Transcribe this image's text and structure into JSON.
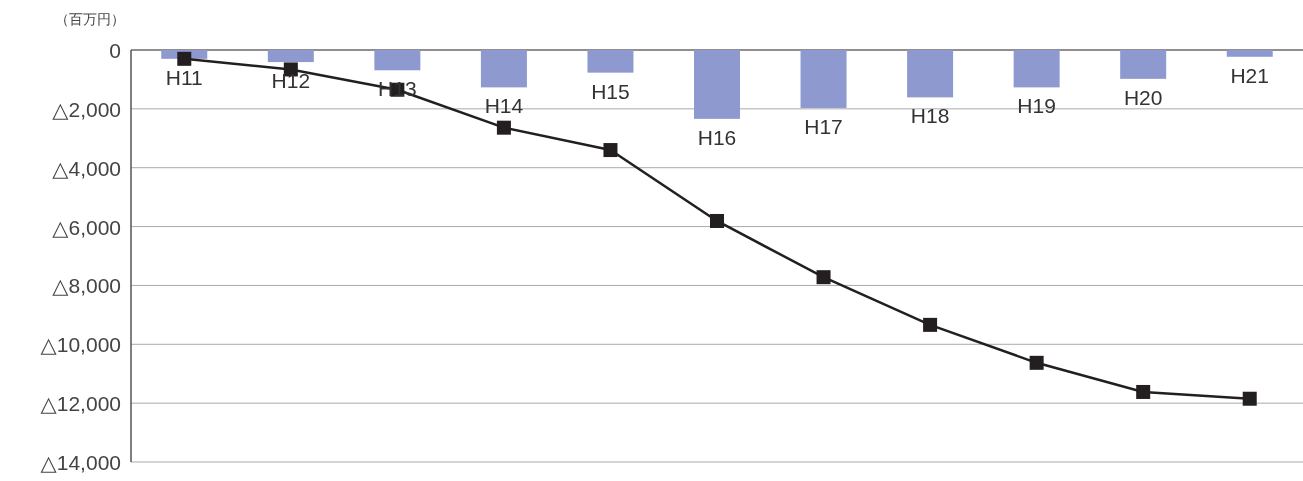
{
  "chart_data": {
    "type": "bar",
    "ylabel": "（百万円）",
    "categories": [
      "H11",
      "H12",
      "H13",
      "H14",
      "H15",
      "H16",
      "H17",
      "H18",
      "H19",
      "H20",
      "H21"
    ],
    "series": [
      {
        "color": "#8e99cf",
        "values": [
          -300,
          -410,
          -690,
          -1270,
          -770,
          -2340,
          -1970,
          -1610,
          -1270,
          -980,
          -230
        ]
      },
      {
        "type": "line",
        "color": "#231f20",
        "marker": "square",
        "values": [
          -300,
          -660,
          -1350,
          -2640,
          -3400,
          -5810,
          -7720,
          -9340,
          -10630,
          -11620,
          -11850
        ]
      }
    ],
    "ylim": [
      -14000,
      0
    ],
    "yticks": [
      0,
      {
        "value": -2000,
        "label": "△2,000"
      },
      {
        "value": -4000,
        "label": "△4,000"
      },
      {
        "value": -6000,
        "label": "△6,000"
      },
      {
        "value": -8000,
        "label": "△8,000"
      },
      {
        "value": -10000,
        "label": "△10,000"
      },
      {
        "value": -12000,
        "label": "△12,000"
      },
      {
        "value": -14000,
        "label": "△14,000"
      }
    ],
    "grid": "y"
  }
}
